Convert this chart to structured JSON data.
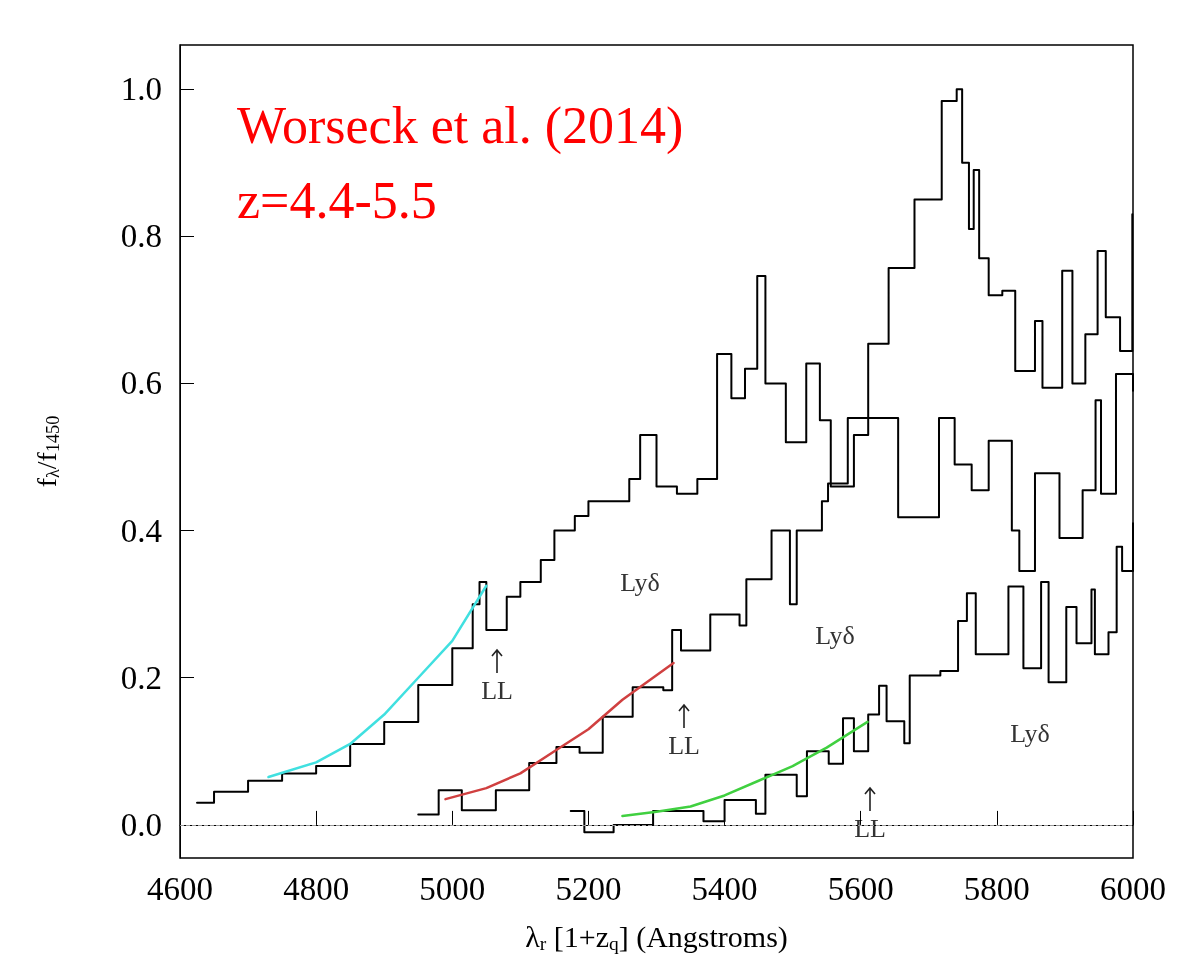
{
  "chart_data": {
    "type": "step",
    "xlabel": "λ$_{r}$ [1+z$_{q}$] (Angstroms)",
    "ylabel": "f$_{λ}$/f$_{1450}$",
    "xlim": [
      4600,
      6000
    ],
    "xticks": [
      4600,
      4800,
      5000,
      5200,
      5400,
      5600,
      5800,
      6000
    ],
    "ylim": [
      -0.045,
      1.06
    ],
    "yticks": [
      {
        "value": 0,
        "label": "0.0"
      },
      0.2,
      0.4,
      0.6,
      0.8,
      {
        "value": 1,
        "label": "1.0"
      }
    ],
    "grid": false,
    "marker": "none",
    "ref_lines": [
      {
        "axis": "y",
        "value": 0,
        "color": "#999999",
        "line_style": "dashed"
      }
    ],
    "annotations": [
      "Worseck et al. (2014)",
      "z=4.4-5.5",
      "Lyδ",
      "Lyδ",
      "Lyδ",
      "LL",
      "LL",
      "LL"
    ],
    "series": [
      {
        "color": "#000000",
        "x": [
          4625,
          4650,
          4700,
          4750,
          4800,
          4850,
          4900,
          4950,
          5000,
          5030,
          5040,
          5050,
          5080,
          5100,
          5130,
          5150,
          5180,
          5200,
          5230,
          5260,
          5276,
          5300,
          5330,
          5360,
          5389,
          5410,
          5430,
          5448,
          5460,
          5490,
          5520,
          5540,
          5556,
          5590,
          5611,
          5641,
          5679,
          5719,
          5741,
          5749,
          5759,
          5766,
          5774,
          5788,
          5808,
          5827,
          5856,
          5867,
          5896,
          5911,
          5930,
          5948,
          5960,
          5981,
          5999
        ],
        "values": [
          0.03,
          0.045,
          0.06,
          0.07,
          0.08,
          0.11,
          0.14,
          0.19,
          0.24,
          0.3,
          0.33,
          0.265,
          0.31,
          0.33,
          0.36,
          0.4,
          0.42,
          0.44,
          0.44,
          0.47,
          0.53,
          0.46,
          0.45,
          0.47,
          0.64,
          0.58,
          0.62,
          0.746,
          0.6,
          0.52,
          0.627,
          0.55,
          0.46,
          0.53,
          0.654,
          0.757,
          0.85,
          0.984,
          1.0,
          0.9,
          0.81,
          0.89,
          0.77,
          0.72,
          0.726,
          0.617,
          0.685,
          0.594,
          0.753,
          0.6,
          0.667,
          0.78,
          0.69,
          0.644,
          0.83
        ]
      },
      {
        "color": "#000000",
        "x": [
          4950,
          4980,
          5014,
          5064,
          5113,
          5153,
          5187,
          5221,
          5265,
          5310,
          5323,
          5336,
          5379,
          5422,
          5432,
          5469,
          5496,
          5506,
          5543,
          5552,
          5581,
          5655,
          5715,
          5738,
          5763,
          5788,
          5822,
          5833,
          5856,
          5892,
          5926,
          5945,
          5953,
          5975,
          6000
        ],
        "values": [
          0.014,
          0.047,
          0.02,
          0.047,
          0.084,
          0.106,
          0.098,
          0.147,
          0.187,
          0.183,
          0.265,
          0.237,
          0.286,
          0.271,
          0.334,
          0.4,
          0.3,
          0.4,
          0.44,
          0.464,
          0.553,
          0.418,
          0.553,
          0.49,
          0.455,
          0.522,
          0.4,
          0.345,
          0.478,
          0.39,
          0.455,
          0.577,
          0.45,
          0.613,
          0.59
        ]
      },
      {
        "color": "#000000",
        "x": [
          5174,
          5194,
          5237,
          5295,
          5369,
          5400,
          5446,
          5460,
          5506,
          5521,
          5553,
          5574,
          5590,
          5611,
          5627,
          5638,
          5664,
          5672,
          5717,
          5743,
          5756,
          5769,
          5817,
          5839,
          5865,
          5876,
          5902,
          5917,
          5939,
          5944,
          5964,
          5976,
          5984,
          6000
        ],
        "values": [
          0.019,
          -0.01,
          0.0,
          0.019,
          0.005,
          0.034,
          0.015,
          0.068,
          0.039,
          0.1,
          0.083,
          0.145,
          0.1,
          0.15,
          0.189,
          0.141,
          0.111,
          0.203,
          0.209,
          0.277,
          0.315,
          0.232,
          0.324,
          0.213,
          0.33,
          0.194,
          0.296,
          0.247,
          0.32,
          0.232,
          0.262,
          0.378,
          0.345,
          0.41
        ]
      },
      {
        "type": "line",
        "color": "#40e0e0",
        "x": [
          4730,
          4800,
          4850,
          4900,
          4950,
          5000,
          5050
        ],
        "values": [
          0.065,
          0.085,
          0.11,
          0.15,
          0.2,
          0.25,
          0.325
        ]
      },
      {
        "type": "line",
        "color": "#d04040",
        "x": [
          4990,
          5050,
          5100,
          5150,
          5200,
          5250,
          5325
        ],
        "values": [
          0.035,
          0.05,
          0.07,
          0.1,
          0.13,
          0.17,
          0.22
        ]
      },
      {
        "type": "line",
        "color": "#40d040",
        "x": [
          5250,
          5300,
          5350,
          5400,
          5450,
          5500,
          5550,
          5610
        ],
        "values": [
          0.012,
          0.018,
          0.025,
          0.04,
          0.06,
          0.08,
          0.105,
          0.14
        ]
      }
    ]
  }
}
